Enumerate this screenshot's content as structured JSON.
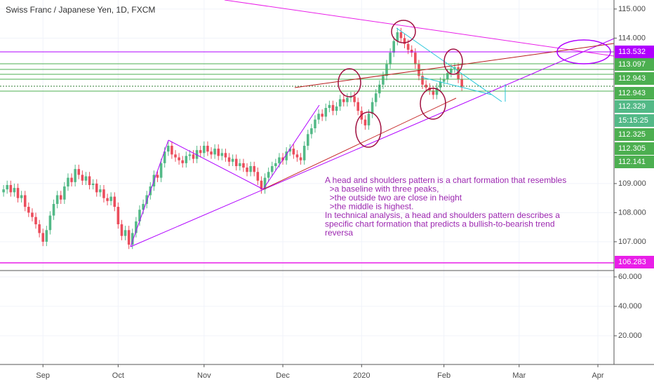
{
  "chart_data": {
    "type": "candlestick",
    "title": "Swiss Franc / Japanese Yen, 1D, FXCM",
    "up_color": "#53b987",
    "down_color": "#eb4d5c",
    "grid": true,
    "xlim": [
      -1,
      170.5
    ],
    "ylim": [
      106.01,
      115.31
    ],
    "yticks": [
      {
        "value": 115,
        "label": "115.000"
      },
      {
        "value": 114,
        "label": "114.000"
      },
      {
        "value": 109,
        "label": "109.000"
      },
      {
        "value": 108,
        "label": "108.000"
      },
      {
        "value": 107,
        "label": "107.000"
      }
    ],
    "pane2_ylim": [
      0.5,
      64.3
    ],
    "pane2_yticks": [
      {
        "value": 60,
        "label": "60.000"
      },
      {
        "value": 40,
        "label": "40.000"
      },
      {
        "value": 20,
        "label": "20.000"
      }
    ],
    "xticks": [
      {
        "value": 11,
        "label": "Sep"
      },
      {
        "value": 32,
        "label": "Oct"
      },
      {
        "value": 56,
        "label": "Nov"
      },
      {
        "value": 78,
        "label": "Dec"
      },
      {
        "value": 100,
        "label": "2020"
      },
      {
        "value": 123,
        "label": "Feb"
      },
      {
        "value": 144,
        "label": "Mar"
      },
      {
        "value": 166,
        "label": "Apr"
      }
    ],
    "open": [
      108.7,
      108.8,
      108.95,
      108.7,
      108.85,
      108.5,
      108.6,
      108.2,
      108.0,
      107.85,
      107.6,
      107.3,
      107.0,
      107.4,
      107.9,
      108.3,
      108.6,
      108.45,
      108.9,
      109.2,
      109.05,
      109.5,
      109.3,
      109.1,
      109.25,
      108.95,
      109.0,
      108.7,
      108.8,
      108.5,
      108.4,
      108.55,
      108.2,
      107.6,
      107.2,
      107.4,
      106.9,
      107.3,
      107.7,
      108.1,
      108.3,
      108.6,
      108.9,
      109.3,
      109.2,
      109.7,
      110.1,
      110.3,
      110.0,
      109.9,
      109.8,
      109.7,
      109.95,
      110.0,
      109.85,
      110.15,
      110.05,
      110.3,
      110.1,
      110.0,
      110.2,
      109.95,
      110.05,
      109.9,
      109.75,
      109.85,
      109.6,
      109.7,
      109.55,
      109.4,
      109.6,
      109.4,
      109.1,
      108.8,
      109.2,
      109.4,
      109.6,
      109.7,
      109.9,
      109.8,
      110.1,
      110.2,
      110.0,
      109.9,
      109.8,
      110.3,
      110.7,
      110.9,
      111.2,
      111.4,
      111.3,
      111.6,
      111.7,
      111.5,
      111.65,
      111.9,
      111.8,
      111.95,
      112.0,
      111.8,
      111.5,
      111.2,
      111.0,
      111.4,
      111.8,
      112.1,
      112.4,
      112.7,
      113.1,
      113.5,
      113.9,
      114.2,
      114.0,
      113.8,
      113.6,
      113.5,
      113.1,
      112.7,
      112.4,
      112.3,
      112.2,
      112.05,
      112.3,
      112.5,
      112.6,
      112.8,
      112.95,
      113.0,
      112.6
    ],
    "high": [
      108.95,
      109.1,
      109.1,
      109.0,
      109.0,
      108.75,
      108.75,
      108.35,
      108.15,
      108.0,
      107.75,
      107.45,
      107.55,
      108.05,
      108.45,
      108.75,
      108.75,
      109.05,
      109.35,
      109.35,
      109.65,
      109.65,
      109.45,
      109.4,
      109.4,
      109.15,
      109.15,
      108.95,
      108.95,
      108.65,
      108.7,
      108.7,
      108.35,
      107.75,
      107.55,
      107.55,
      107.45,
      107.85,
      108.25,
      108.45,
      108.75,
      109.05,
      109.45,
      109.45,
      109.85,
      110.25,
      110.45,
      110.45,
      110.15,
      110.05,
      109.95,
      110.1,
      110.15,
      110.15,
      110.3,
      110.3,
      110.45,
      110.45,
      110.25,
      110.35,
      110.35,
      110.2,
      110.2,
      110.05,
      110.0,
      110.0,
      109.85,
      109.85,
      109.7,
      109.75,
      109.75,
      109.55,
      109.25,
      109.35,
      109.55,
      109.75,
      109.85,
      110.05,
      110.05,
      110.25,
      110.35,
      110.35,
      110.15,
      110.05,
      110.45,
      110.85,
      111.05,
      111.35,
      111.55,
      111.55,
      111.75,
      111.85,
      111.85,
      111.8,
      112.05,
      112.05,
      112.1,
      112.15,
      112.15,
      111.95,
      111.65,
      111.35,
      111.55,
      111.95,
      112.25,
      112.55,
      112.85,
      113.25,
      113.65,
      114.05,
      114.35,
      114.35,
      114.15,
      113.95,
      113.75,
      113.65,
      113.25,
      112.85,
      112.55,
      112.45,
      112.35,
      112.45,
      112.65,
      112.75,
      112.95,
      113.1,
      113.15,
      113.15,
      112.75
    ],
    "low": [
      108.55,
      108.65,
      108.55,
      108.55,
      108.35,
      108.35,
      108.05,
      107.85,
      107.7,
      107.45,
      107.15,
      106.85,
      106.85,
      107.25,
      107.75,
      108.15,
      108.3,
      108.3,
      108.75,
      108.9,
      108.9,
      109.15,
      108.95,
      108.95,
      108.8,
      108.8,
      108.55,
      108.55,
      108.35,
      108.25,
      108.25,
      108.05,
      107.45,
      107.05,
      107.05,
      106.75,
      106.75,
      107.15,
      107.55,
      107.95,
      108.15,
      108.45,
      108.75,
      109.05,
      109.05,
      109.55,
      109.95,
      109.85,
      109.75,
      109.65,
      109.55,
      109.55,
      109.8,
      109.7,
      109.7,
      109.9,
      109.9,
      109.95,
      109.85,
      109.85,
      109.8,
      109.8,
      109.75,
      109.6,
      109.6,
      109.45,
      109.45,
      109.4,
      109.25,
      109.25,
      109.25,
      108.95,
      108.65,
      108.65,
      109.05,
      109.25,
      109.45,
      109.55,
      109.65,
      109.65,
      109.95,
      109.85,
      109.75,
      109.65,
      109.65,
      110.15,
      110.55,
      110.75,
      111.05,
      111.15,
      111.15,
      111.45,
      111.35,
      111.35,
      111.5,
      111.65,
      111.65,
      111.8,
      111.65,
      111.35,
      111.05,
      110.85,
      110.85,
      111.25,
      111.65,
      111.95,
      112.25,
      112.55,
      112.95,
      113.35,
      113.75,
      113.85,
      113.65,
      113.45,
      113.35,
      112.95,
      112.55,
      112.25,
      112.15,
      112.05,
      111.9,
      111.9,
      112.15,
      112.35,
      112.45,
      112.65,
      112.8,
      112.45,
      112.18
    ],
    "close": [
      108.8,
      108.95,
      108.7,
      108.85,
      108.5,
      108.6,
      108.2,
      108.0,
      107.85,
      107.6,
      107.3,
      107.0,
      107.4,
      107.9,
      108.3,
      108.6,
      108.45,
      108.9,
      109.2,
      109.05,
      109.5,
      109.3,
      109.1,
      109.25,
      108.95,
      109.0,
      108.7,
      108.8,
      108.5,
      108.4,
      108.55,
      108.2,
      107.6,
      107.2,
      107.4,
      106.9,
      107.3,
      107.7,
      108.1,
      108.3,
      108.6,
      108.9,
      109.3,
      109.2,
      109.7,
      110.1,
      110.3,
      110.0,
      109.9,
      109.8,
      109.7,
      109.95,
      110.0,
      109.85,
      110.15,
      110.05,
      110.3,
      110.1,
      110.0,
      110.2,
      109.95,
      110.05,
      109.9,
      109.75,
      109.85,
      109.6,
      109.7,
      109.55,
      109.4,
      109.6,
      109.4,
      109.1,
      108.8,
      109.2,
      109.4,
      109.6,
      109.7,
      109.9,
      109.8,
      110.1,
      110.2,
      110.0,
      109.9,
      109.8,
      110.3,
      110.7,
      110.9,
      111.2,
      111.4,
      111.3,
      111.6,
      111.7,
      111.5,
      111.65,
      111.9,
      111.8,
      111.95,
      112.0,
      111.8,
      111.5,
      111.2,
      111.0,
      111.4,
      111.8,
      112.1,
      112.4,
      112.7,
      113.1,
      113.5,
      113.9,
      114.2,
      114.0,
      113.8,
      113.6,
      113.5,
      113.1,
      112.7,
      112.4,
      112.3,
      112.2,
      112.05,
      112.3,
      112.5,
      112.6,
      112.8,
      112.95,
      113.0,
      112.6,
      112.33
    ],
    "price_labels": [
      {
        "text": "113.532",
        "color": "#b000ff"
      },
      {
        "text": "113.097",
        "color": "#4caf50"
      },
      {
        "text": "112.943",
        "color": "#4caf50"
      },
      {
        "text": "112.943",
        "color": "#4caf50"
      },
      {
        "text": "112.329",
        "color": "#53b987"
      },
      {
        "text": "15:15:25",
        "color": "#53b987"
      },
      {
        "text": "112.325",
        "color": "#4caf50"
      },
      {
        "text": "112.305",
        "color": "#4caf50"
      },
      {
        "text": "112.141",
        "color": "#4caf50"
      },
      {
        "text": "106.283",
        "color": "#e91ee8"
      }
    ],
    "annotation": [
      "A head and shoulders pattern is a chart formation that resembles",
      "  >a baseline with three peaks,",
      "  >the outside two are close in height",
      "  >the middle is highest.",
      "In technical analysis, a head and shoulders pattern describes a",
      "specific chart formation that predicts a bullish-to-bearish trend",
      "reversa"
    ]
  }
}
